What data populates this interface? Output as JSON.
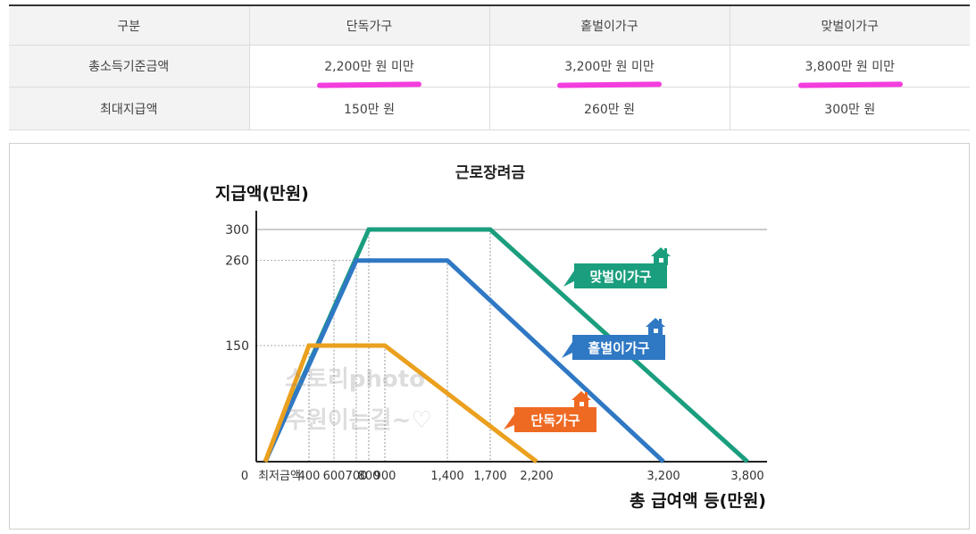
{
  "table": {
    "headers": [
      "구분",
      "단독가구",
      "홑벌이가구",
      "맞벌이가구"
    ],
    "rows": [
      [
        "총소득기준금액",
        "2,200만 원 미만",
        "3,200만 원 미만",
        "3,800만 원 미만"
      ],
      [
        "최대지급액",
        "150만 원",
        "260만 원",
        "300만 원"
      ]
    ]
  },
  "chart_data": {
    "type": "line",
    "title": "근로장려금",
    "ylabel": "지급액(만원)",
    "xlabel": "총 급여액 등(만원)",
    "x_tick_labels": [
      "0",
      "최저금액",
      "400",
      "600",
      "700",
      "800",
      "900",
      "1,400",
      "1,700",
      "2,200",
      "3,200",
      "3,800"
    ],
    "y_tick_labels": [
      "300",
      "260",
      "150"
    ],
    "ylim": [
      0,
      330
    ],
    "watermark": [
      "스토리photo",
      "주원이는길~♡"
    ],
    "series": [
      {
        "name": "맞벌이가구",
        "color": "#1a9e7e",
        "points": [
          [
            0,
            0
          ],
          [
            800,
            300
          ],
          [
            1700,
            300
          ],
          [
            3800,
            0
          ]
        ]
      },
      {
        "name": "홑벌이가구",
        "color": "#2f78c4",
        "points": [
          [
            0,
            0
          ],
          [
            700,
            260
          ],
          [
            1400,
            260
          ],
          [
            3200,
            0
          ]
        ]
      },
      {
        "name": "단독가구",
        "color": "#eba01e",
        "points": [
          [
            0,
            0
          ],
          [
            400,
            150
          ],
          [
            900,
            150
          ],
          [
            2200,
            0
          ]
        ]
      }
    ],
    "label_colors": {
      "맞벌이가구": "#1a9e7e",
      "홑벌이가구": "#2f78c4",
      "단독가구": "#ee6a23"
    }
  }
}
